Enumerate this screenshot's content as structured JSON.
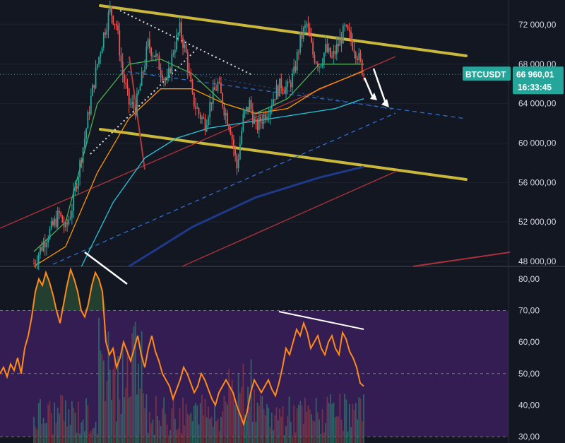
{
  "instrument": {
    "symbol": "BTCUSDT",
    "last_price": "66 960,01",
    "countdown": "16:33:45",
    "price_tag_color": "#26a69a"
  },
  "colors": {
    "background": "#131722",
    "up_candle": "#26a69a",
    "down_candle": "#ef5350",
    "channel": "#c9b83c",
    "dashed_trend": "#2962ff",
    "rsi_line": "#ff8a1a",
    "rsi_band": "#3a1f5c",
    "annotation": "#ffffff"
  },
  "chart_data": [
    {
      "type": "candlestick",
      "pane": "price",
      "currency_axis": "right",
      "ylim": [
        47500,
        74500
      ],
      "yticks": [
        "72 000,00",
        "68 000,00",
        "64 000,00",
        "60 000,00",
        "56 000,00",
        "52 000,00",
        "48 000,00"
      ],
      "ytick_values": [
        72000,
        68000,
        64000,
        60000,
        56000,
        52000,
        48000
      ],
      "candles_count": 160,
      "approx_path": [
        [
          0,
          47800
        ],
        [
          4,
          49200
        ],
        [
          8,
          50500
        ],
        [
          12,
          51600
        ],
        [
          16,
          52800
        ],
        [
          20,
          51200
        ],
        [
          24,
          53500
        ],
        [
          28,
          57000
        ],
        [
          32,
          60500
        ],
        [
          36,
          64500
        ],
        [
          40,
          68000
        ],
        [
          44,
          71000
        ],
        [
          48,
          73500
        ],
        [
          52,
          72000
        ],
        [
          56,
          67000
        ],
        [
          60,
          64000
        ],
        [
          64,
          63500
        ],
        [
          68,
          66500
        ],
        [
          72,
          70000
        ],
        [
          76,
          69000
        ],
        [
          80,
          67500
        ],
        [
          84,
          66000
        ],
        [
          88,
          69500
        ],
        [
          92,
          71500
        ],
        [
          96,
          69000
        ],
        [
          100,
          64500
        ],
        [
          104,
          63000
        ],
        [
          108,
          62000
        ],
        [
          112,
          64500
        ],
        [
          116,
          66000
        ],
        [
          120,
          63500
        ],
        [
          124,
          61500
        ],
        [
          128,
          57500
        ],
        [
          132,
          62500
        ],
        [
          136,
          64000
        ],
        [
          140,
          61500
        ],
        [
          144,
          62500
        ],
        [
          148,
          63500
        ],
        [
          152,
          65000
        ],
        [
          156,
          66000
        ],
        [
          160,
          65500
        ],
        [
          164,
          67000
        ],
        [
          168,
          70500
        ],
        [
          172,
          72000
        ],
        [
          176,
          69000
        ],
        [
          180,
          68000
        ],
        [
          184,
          69500
        ],
        [
          188,
          68500
        ],
        [
          192,
          70000
        ],
        [
          196,
          71500
        ],
        [
          200,
          70500
        ],
        [
          204,
          69000
        ],
        [
          208,
          67000
        ]
      ],
      "moving_averages": [
        {
          "color": "#4caf50",
          "values": [
            [
              0,
              49000
            ],
            [
              20,
              52000
            ],
            [
              40,
              64000
            ],
            [
              60,
              68000
            ],
            [
              80,
              68500
            ],
            [
              100,
              67000
            ],
            [
              120,
              64000
            ],
            [
              140,
              63000
            ],
            [
              160,
              64500
            ],
            [
              180,
              68000
            ],
            [
              208,
              68000
            ]
          ]
        },
        {
          "color": "#ff9800",
          "values": [
            [
              0,
              47500
            ],
            [
              20,
              49500
            ],
            [
              40,
              57000
            ],
            [
              60,
              62500
            ],
            [
              80,
              65500
            ],
            [
              100,
              65500
            ],
            [
              120,
              64000
            ],
            [
              140,
              63000
            ],
            [
              160,
              63500
            ],
            [
              180,
              65500
            ],
            [
              208,
              67300
            ]
          ]
        },
        {
          "color": "#26c6da",
          "values": [
            [
              30,
              47500
            ],
            [
              50,
              54000
            ],
            [
              70,
              58500
            ],
            [
              90,
              60500
            ],
            [
              110,
              61500
            ],
            [
              130,
              62000
            ],
            [
              150,
              62500
            ],
            [
              170,
              63000
            ],
            [
              190,
              63500
            ],
            [
              208,
              64500
            ]
          ]
        },
        {
          "color": "#1e3a8a",
          "values": [
            [
              60,
              47500
            ],
            [
              80,
              49500
            ],
            [
              100,
              51500
            ],
            [
              120,
              53000
            ],
            [
              140,
              54500
            ],
            [
              160,
              55500
            ],
            [
              180,
              56500
            ],
            [
              208,
              57600
            ]
          ]
        }
      ],
      "channel_upper": [
        [
          72000,
          "start"
        ],
        [
          69000,
          "end"
        ]
      ],
      "channel_lower": [
        [
          61500,
          "start"
        ],
        [
          56000,
          "end"
        ]
      ]
    },
    {
      "type": "line",
      "pane": "rsi",
      "ylim": [
        28,
        84
      ],
      "yticks": [
        "80,00",
        "70,00",
        "60,00",
        "50,00",
        "40,00",
        "30,00"
      ],
      "ytick_values": [
        80,
        70,
        60,
        50,
        40,
        30
      ],
      "band": [
        30,
        70
      ],
      "midline": 50,
      "series": [
        {
          "values": [
            50,
            52,
            49,
            53,
            51,
            55,
            50,
            58,
            62,
            68,
            76,
            80,
            78,
            82,
            79,
            75,
            70,
            66,
            72,
            78,
            83,
            80,
            76,
            70,
            68,
            72,
            78,
            82,
            80,
            76,
            60,
            56,
            58,
            52,
            55,
            60,
            57,
            54,
            58,
            62,
            56,
            52,
            58,
            62,
            57,
            54,
            50,
            48,
            46,
            42,
            45,
            48,
            52,
            50,
            47,
            44,
            46,
            50,
            48,
            45,
            42,
            40,
            44,
            46,
            48,
            46,
            44,
            40,
            37,
            34,
            38,
            44,
            48,
            46,
            44,
            46,
            48,
            45,
            43,
            47,
            52,
            58,
            56,
            60,
            64,
            62,
            66,
            63,
            58,
            60,
            62,
            58,
            56,
            60,
            62,
            58,
            56,
            63,
            61,
            57,
            55,
            52,
            47,
            46
          ]
        }
      ]
    }
  ]
}
